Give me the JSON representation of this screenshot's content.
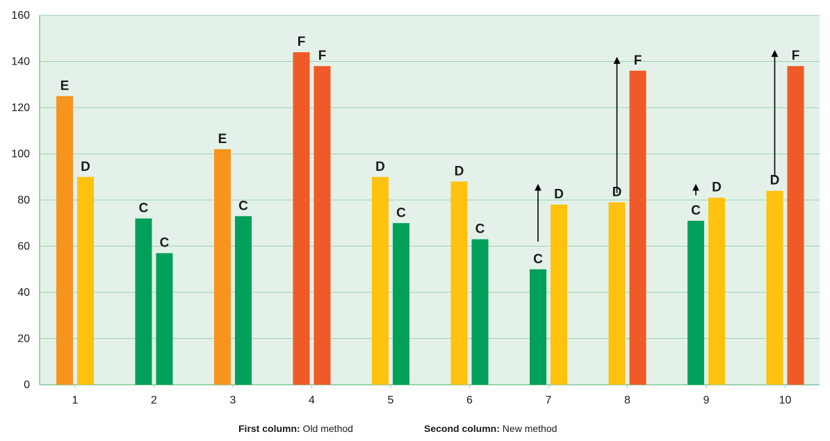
{
  "chart_data": {
    "type": "bar",
    "categories": [
      "1",
      "2",
      "3",
      "4",
      "5",
      "6",
      "7",
      "8",
      "9",
      "10"
    ],
    "series": [
      {
        "values": [
          125,
          72,
          102,
          144,
          90,
          88,
          50,
          79,
          71,
          84
        ],
        "grades": [
          "E",
          "C",
          "E",
          "F",
          "D",
          "D",
          "C",
          "D",
          "C",
          "D"
        ]
      },
      {
        "values": [
          90,
          57,
          73,
          138,
          70,
          63,
          78,
          136,
          81,
          138
        ],
        "grades": [
          "D",
          "C",
          "C",
          "F",
          "C",
          "C",
          "D",
          "F",
          "D",
          "F"
        ]
      }
    ],
    "arrows": [
      {
        "category": "7",
        "from": 62,
        "to": 87
      },
      {
        "category": "8",
        "from": 83,
        "to": 142
      },
      {
        "category": "9",
        "from": 82,
        "to": 87
      },
      {
        "category": "10",
        "from": 90,
        "to": 145
      }
    ],
    "ylim": [
      0,
      160
    ],
    "yticks": [
      0,
      20,
      40,
      60,
      80,
      100,
      120,
      140,
      160
    ],
    "grid": true,
    "grade_colors": {
      "C": "#00a05a",
      "D": "#ffc20e",
      "E": "#f7941d",
      "F": "#f05a28"
    },
    "background_color": "#e3f1e8",
    "grid_color": "#9bd2b0"
  },
  "legend": {
    "first_label": "First column:",
    "first_text": " Old method",
    "second_label": "Second column:",
    "second_text": " New method"
  }
}
